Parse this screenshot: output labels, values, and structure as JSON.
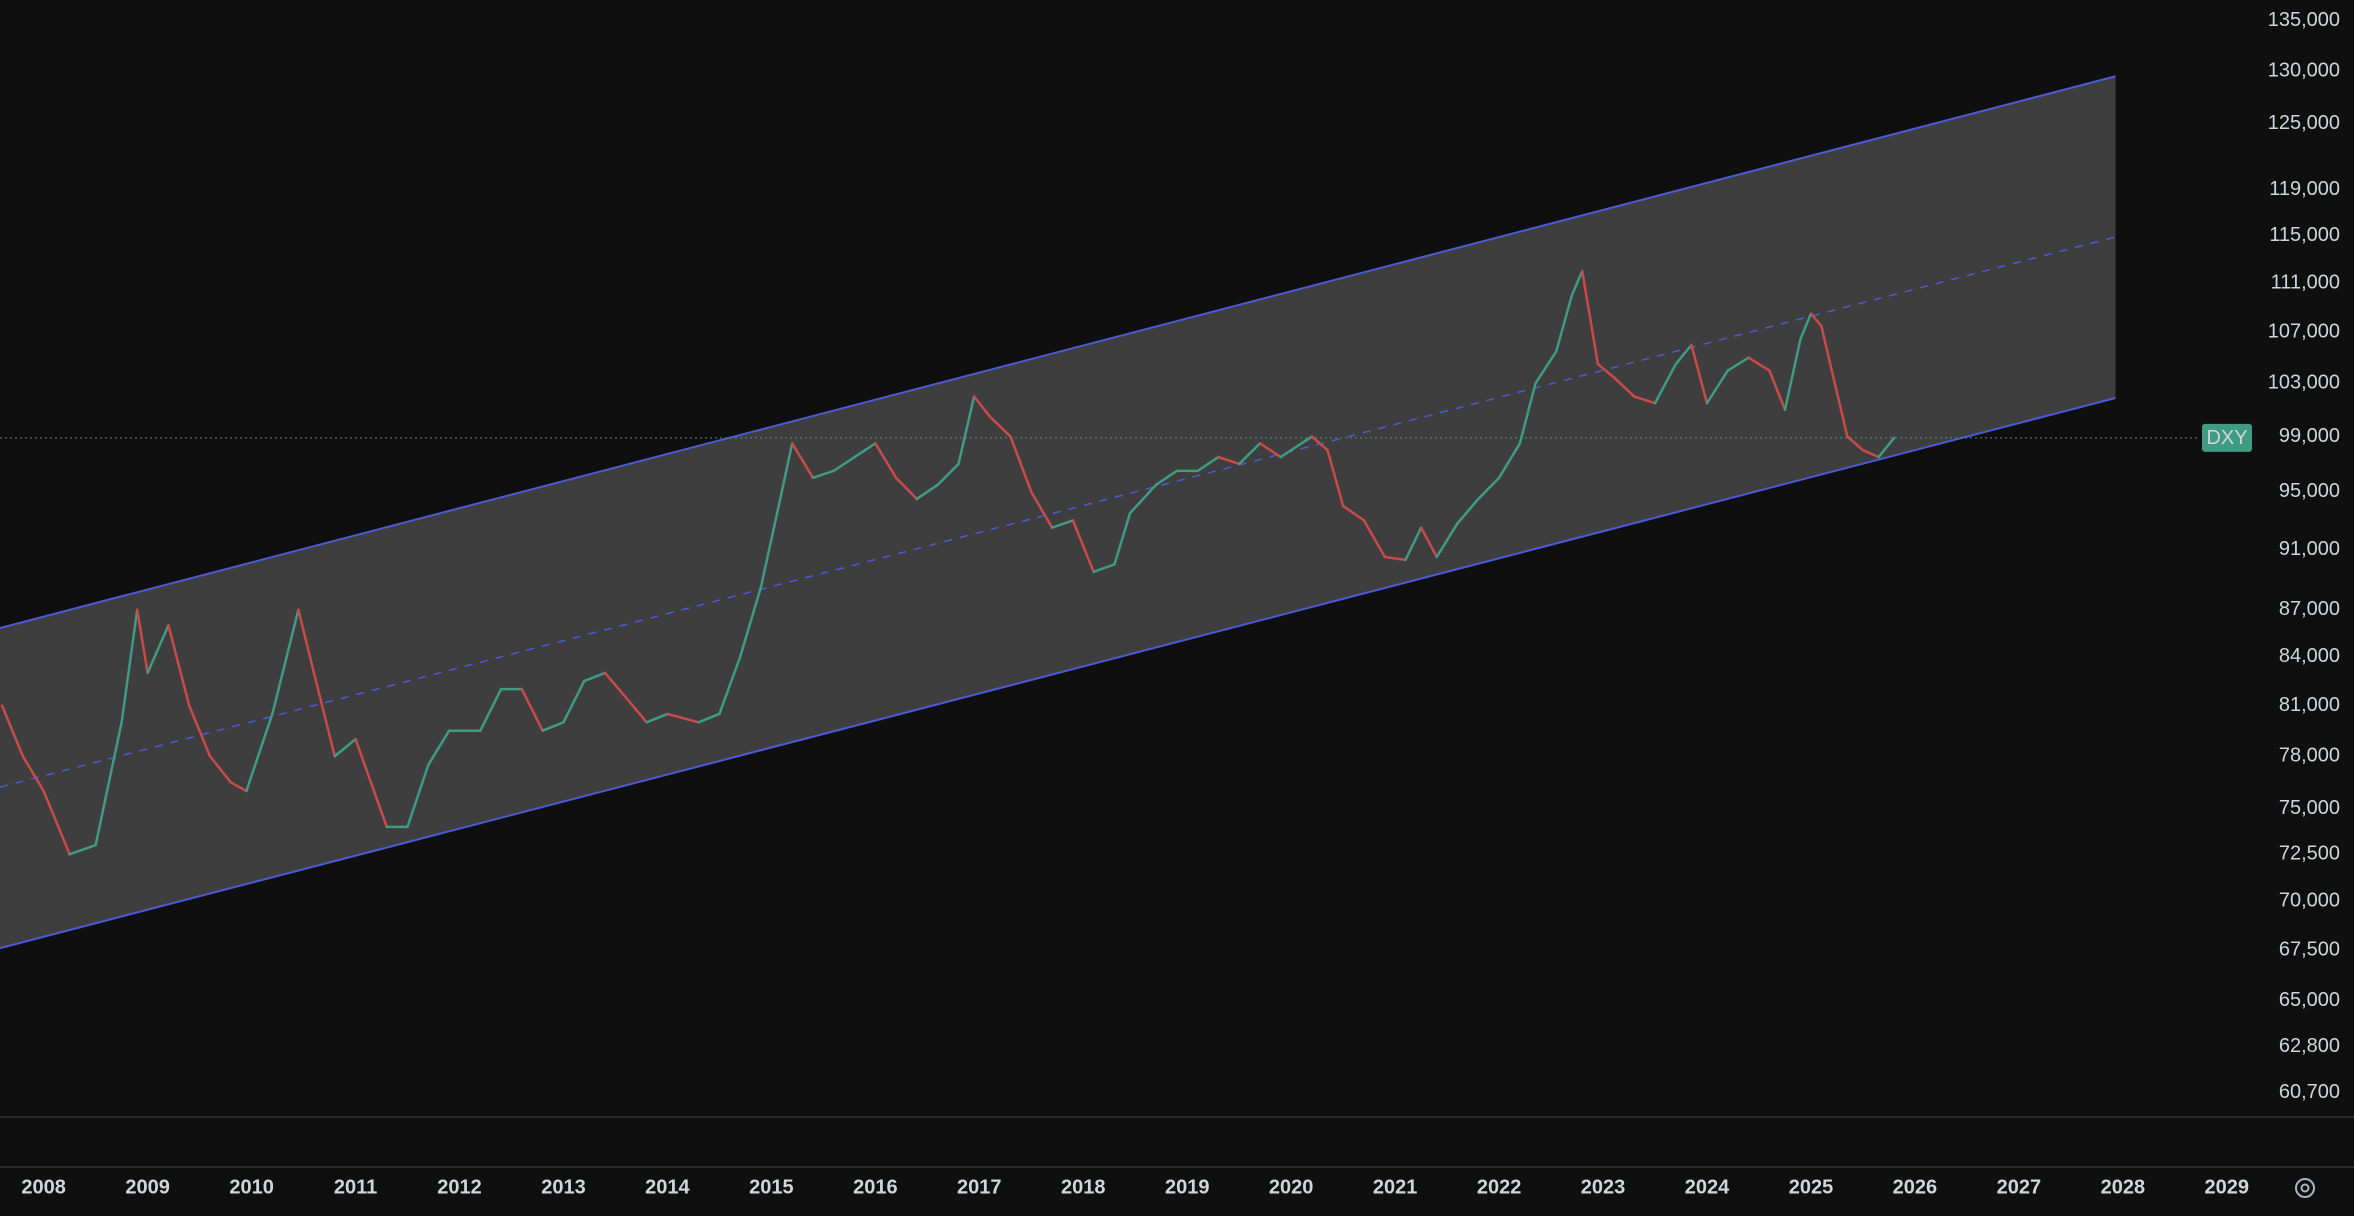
{
  "chart_data": {
    "type": "line",
    "log_scale": true,
    "grid": false,
    "xlim": [
      2007.58,
      2029.3
    ],
    "xticks": [
      2008,
      2009,
      2010,
      2011,
      2012,
      2013,
      2014,
      2015,
      2016,
      2017,
      2018,
      2019,
      2020,
      2021,
      2022,
      2023,
      2024,
      2025,
      2026,
      2027,
      2028,
      2029
    ],
    "ylim": [
      59600,
      137100
    ],
    "yticks": [
      {
        "value": 135000,
        "label": "135,000"
      },
      {
        "value": 130000,
        "label": "130,000"
      },
      {
        "value": 125000,
        "label": "125,000"
      },
      {
        "value": 119000,
        "label": "119,000"
      },
      {
        "value": 115000,
        "label": "115,000"
      },
      {
        "value": 111000,
        "label": "111,000"
      },
      {
        "value": 107000,
        "label": "107,000"
      },
      {
        "value": 103000,
        "label": "103,000"
      },
      {
        "value": 99000,
        "label": "99,000"
      },
      {
        "value": 95000,
        "label": "95,000"
      },
      {
        "value": 91000,
        "label": "91,000"
      },
      {
        "value": 87000,
        "label": "87,000"
      },
      {
        "value": 84000,
        "label": "84,000"
      },
      {
        "value": 81000,
        "label": "81,000"
      },
      {
        "value": 78000,
        "label": "78,000"
      },
      {
        "value": 75000,
        "label": "75,000"
      },
      {
        "value": 72500,
        "label": "72,500"
      },
      {
        "value": 70000,
        "label": "70,000"
      },
      {
        "value": 67500,
        "label": "67,500"
      },
      {
        "value": 65000,
        "label": "65,000"
      },
      {
        "value": 62800,
        "label": "62,800"
      },
      {
        "value": 60700,
        "label": "60,700"
      }
    ],
    "x": [
      2007.6,
      2007.8,
      2008.0,
      2008.25,
      2008.5,
      2008.75,
      2008.9,
      2009.0,
      2009.2,
      2009.4,
      2009.6,
      2009.8,
      2009.95,
      2010.2,
      2010.45,
      2010.6,
      2010.8,
      2011.0,
      2011.3,
      2011.5,
      2011.7,
      2011.9,
      2012.2,
      2012.4,
      2012.6,
      2012.8,
      2013.0,
      2013.2,
      2013.4,
      2013.6,
      2013.8,
      2014.0,
      2014.3,
      2014.5,
      2014.7,
      2014.9,
      2015.1,
      2015.2,
      2015.4,
      2015.6,
      2015.8,
      2016.0,
      2016.2,
      2016.4,
      2016.6,
      2016.8,
      2016.95,
      2017.1,
      2017.3,
      2017.5,
      2017.7,
      2017.9,
      2018.1,
      2018.3,
      2018.45,
      2018.7,
      2018.9,
      2019.1,
      2019.3,
      2019.5,
      2019.7,
      2019.9,
      2020.1,
      2020.2,
      2020.35,
      2020.5,
      2020.7,
      2020.9,
      2021.1,
      2021.25,
      2021.4,
      2021.6,
      2021.8,
      2022.0,
      2022.2,
      2022.35,
      2022.55,
      2022.7,
      2022.8,
      2022.95,
      2023.1,
      2023.3,
      2023.5,
      2023.7,
      2023.85,
      2024.0,
      2024.2,
      2024.4,
      2024.6,
      2024.75,
      2024.9,
      2025.0,
      2025.1,
      2025.2,
      2025.35,
      2025.5,
      2025.65,
      2025.8
    ],
    "series": [
      {
        "name": "DXY",
        "color": "#3f9b82",
        "down_color": "#c94a4a",
        "values": [
          81000,
          78000,
          76000,
          72500,
          73000,
          80000,
          87000,
          83000,
          86000,
          81000,
          78000,
          76500,
          76000,
          80500,
          87000,
          83000,
          78000,
          79000,
          74000,
          74000,
          77500,
          79500,
          79500,
          82000,
          82000,
          79500,
          80000,
          82500,
          83000,
          81500,
          80000,
          80500,
          80000,
          80500,
          84000,
          88500,
          95000,
          98500,
          96000,
          96500,
          97500,
          98500,
          96000,
          94500,
          95500,
          97000,
          102000,
          100500,
          99000,
          95000,
          92500,
          93000,
          89500,
          90000,
          93500,
          95500,
          96500,
          96500,
          97500,
          97000,
          98500,
          97500,
          98500,
          99000,
          98000,
          94000,
          93000,
          90500,
          90300,
          92500,
          90500,
          92800,
          94500,
          96000,
          98500,
          103000,
          105500,
          110000,
          112000,
          104500,
          103500,
          102000,
          101500,
          104500,
          106000,
          101500,
          104000,
          105000,
          104000,
          101000,
          106500,
          108500,
          107500,
          104000,
          99000,
          98000,
          97500,
          98900
        ]
      }
    ],
    "channel": {
      "x": [
        2007.58,
        2027.93
      ],
      "upper": [
        85830,
        129520
      ],
      "middle": [
        76220,
        114890
      ],
      "lower": [
        67600,
        101890
      ],
      "color": "#4a5bd4"
    }
  }
}
